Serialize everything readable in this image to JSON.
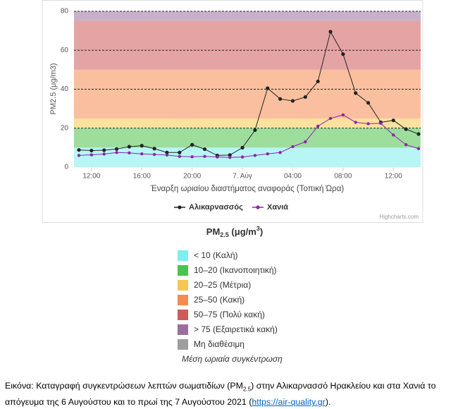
{
  "chart_data": {
    "type": "line",
    "y_axis_title": "PM2.5 (μg/m3)",
    "x_axis_title": "Έναρξη ωριαίου διαστήματος αναφοράς (Τοπική Ώρα)",
    "credit": "Highcharts.com",
    "categories": [
      null,
      "12:00",
      null,
      null,
      null,
      "16:00",
      null,
      null,
      null,
      "20:00",
      null,
      null,
      null,
      "7. Αύγ",
      null,
      null,
      null,
      "04:00",
      null,
      null,
      null,
      "08:00",
      null,
      null,
      null,
      "12:00",
      null,
      null
    ],
    "series": [
      {
        "name": "Αλικαρνασσός",
        "color": "#222222",
        "values": [
          8.8,
          8.5,
          8.7,
          9.3,
          10.5,
          11,
          9.5,
          7.5,
          7.5,
          11.5,
          9.2,
          6,
          6.2,
          10,
          19,
          40.5,
          35,
          34,
          36,
          44,
          69.5,
          58,
          38,
          33,
          23,
          24,
          19.5,
          17
        ]
      },
      {
        "name": "Χανιά",
        "color": "#8e24aa",
        "values": [
          6,
          6.3,
          6.7,
          7.5,
          7.3,
          6.8,
          6.5,
          6.2,
          5.5,
          5.3,
          5.5,
          5.2,
          5,
          5.2,
          6,
          6.8,
          7.5,
          10.5,
          13,
          21,
          25,
          26.8,
          23,
          22.3,
          22.5,
          16.5,
          11.5,
          9.5
        ]
      }
    ],
    "ylim": [
      0,
      80
    ],
    "yticks": [
      0,
      20,
      40,
      60,
      80
    ],
    "grid": true,
    "bands": [
      {
        "from": 0,
        "to": 10,
        "color": "#7eeeee",
        "label": "< 10 (Καλή)"
      },
      {
        "from": 10,
        "to": 20,
        "color": "#4cc34c",
        "label": "10–20 (Ικανοποιητική)"
      },
      {
        "from": 20,
        "to": 25,
        "color": "#f9c74f",
        "label": "20–25 (Μέτρια)"
      },
      {
        "from": 25,
        "to": 50,
        "color": "#f68a4f",
        "label": "25–50 (Κακή)"
      },
      {
        "from": 50,
        "to": 75,
        "color": "#cf5a5a",
        "label": "50–75 (Πολύ κακή)"
      },
      {
        "from": 75,
        "color": "#9a6f9e",
        "label": "> 75 (Εξαιρετικά κακή)"
      }
    ]
  },
  "aqi_legend": {
    "title_main": "PM",
    "title_sub": "2.5",
    "title_unit": " (μg/m",
    "title_sup": "3",
    "title_end": ")",
    "extra": {
      "label": "Μη διαθέσιμη",
      "color": "#9e9e9e"
    },
    "note": "Μέση ωριαία συγκέντρωση"
  },
  "caption": {
    "text1": "Εικόνα: Καταγραφή συγκεντρώσεων λεπτών σωματιδίων (PM",
    "sub": "2.5",
    "text2": ") στην Αλικαρνασσό Ηρακλείου και στα Χανιά το απόγευμα της 6 Αυγούστου και το πρωί της 7 Αυγούστου 2021 (",
    "link": "https://air-quality.gr",
    "text3": ")."
  }
}
